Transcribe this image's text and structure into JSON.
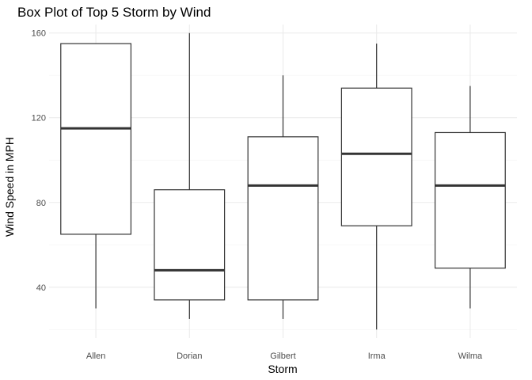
{
  "chart_data": {
    "type": "boxplot",
    "title": "Box Plot of Top 5 Storm by Wind",
    "xlabel": "Storm",
    "ylabel": "Wind Speed in MPH",
    "categories": [
      "Allen",
      "Dorian",
      "Gilbert",
      "Irma",
      "Wilma"
    ],
    "boxes": [
      {
        "category": "Allen",
        "min": 30,
        "q1": 65,
        "median": 115,
        "q3": 155,
        "max": 155
      },
      {
        "category": "Dorian",
        "min": 25,
        "q1": 34,
        "median": 48,
        "q3": 86,
        "max": 160
      },
      {
        "category": "Gilbert",
        "min": 25,
        "q1": 34,
        "median": 88,
        "q3": 111,
        "max": 140
      },
      {
        "category": "Irma",
        "min": 20,
        "q1": 69,
        "median": 103,
        "q3": 134,
        "max": 155
      },
      {
        "category": "Wilma",
        "min": 30,
        "q1": 49,
        "median": 88,
        "q3": 113,
        "max": 135
      }
    ],
    "y_ticks": [
      40,
      80,
      120,
      160
    ],
    "ylim": [
      16,
      164
    ],
    "grid": true,
    "legend": "none",
    "colors": {
      "box_stroke": "#333333",
      "box_fill": "#ffffff",
      "grid_major": "#ebebeb",
      "grid_minor": "#f5f5f5",
      "tick_text": "#4d4d4d"
    }
  }
}
